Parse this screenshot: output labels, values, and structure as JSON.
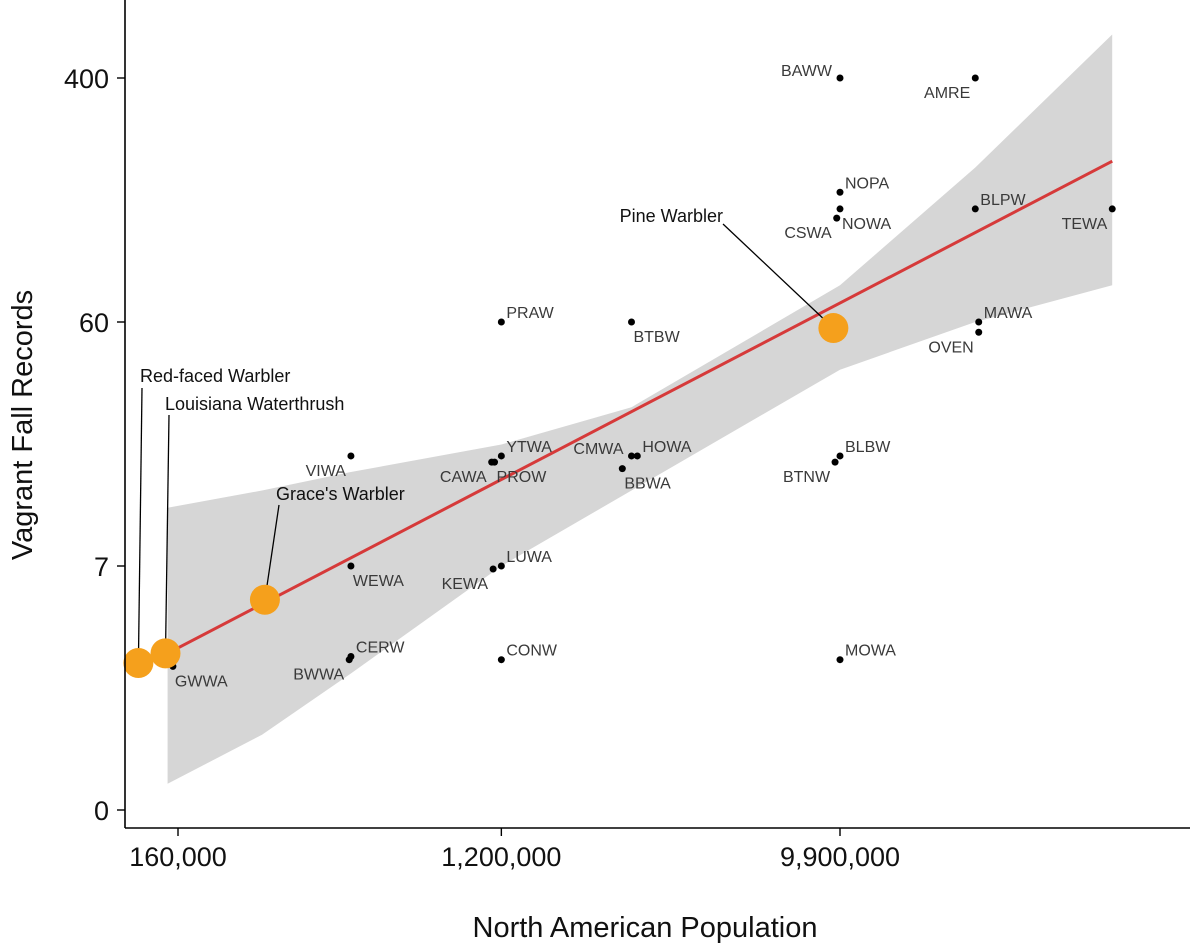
{
  "chart_data": {
    "type": "scatter",
    "xlabel": "North American Population",
    "ylabel": "Vagrant Fall Records",
    "x_scale": "log",
    "y_scale": "pseudo-log",
    "x_ticks": [
      {
        "value": 160000,
        "label": "160,000"
      },
      {
        "value": 1200000,
        "label": "1,200,000"
      },
      {
        "value": 9900000,
        "label": "9,900,000"
      }
    ],
    "y_ticks": [
      {
        "value": 0,
        "label": "0"
      },
      {
        "value": 7,
        "label": "7"
      },
      {
        "value": 60,
        "label": "60"
      },
      {
        "value": 400,
        "label": "400"
      }
    ],
    "species": [
      {
        "code": "BAWW",
        "x": 9900000,
        "y": 400,
        "label_side": "left"
      },
      {
        "code": "AMRE",
        "x": 23000000,
        "y": 400,
        "label_side": "below-left"
      },
      {
        "code": "NOPA",
        "x": 9900000,
        "y": 165,
        "label_side": "right"
      },
      {
        "code": "NOWA",
        "x": 9900000,
        "y": 145,
        "label_side": "below-right"
      },
      {
        "code": "CSWA",
        "x": 9700000,
        "y": 135,
        "label_side": "below-left"
      },
      {
        "code": "BLPW",
        "x": 23000000,
        "y": 145,
        "label_side": "right"
      },
      {
        "code": "TEWA",
        "x": 54000000,
        "y": 145,
        "label_side": "below-left"
      },
      {
        "code": "PRAW",
        "x": 1200000,
        "y": 60,
        "label_side": "right"
      },
      {
        "code": "BTBW",
        "x": 2700000,
        "y": 60,
        "label_side": "below-right"
      },
      {
        "code": "MAWA",
        "x": 23500000,
        "y": 60,
        "label_side": "right"
      },
      {
        "code": "OVEN",
        "x": 23500000,
        "y": 55,
        "label_side": "below-left"
      },
      {
        "code": "VIWA",
        "x": 470000,
        "y": 19,
        "label_side": "below-left"
      },
      {
        "code": "YTWA",
        "x": 1200000,
        "y": 19,
        "label_side": "right"
      },
      {
        "code": "PROW",
        "x": 1150000,
        "y": 18,
        "label_side": "below-right"
      },
      {
        "code": "CAWA",
        "x": 1130000,
        "y": 18,
        "label_side": "below-left"
      },
      {
        "code": "CMWA",
        "x": 2700000,
        "y": 19,
        "label_side": "left"
      },
      {
        "code": "HOWA",
        "x": 2800000,
        "y": 19,
        "label_side": "right"
      },
      {
        "code": "BBWA",
        "x": 2550000,
        "y": 17,
        "label_side": "below-right"
      },
      {
        "code": "BLBW",
        "x": 9900000,
        "y": 19,
        "label_side": "right"
      },
      {
        "code": "BTNW",
        "x": 9600000,
        "y": 18,
        "label_side": "below-left"
      },
      {
        "code": "WEWA",
        "x": 470000,
        "y": 7,
        "label_side": "below-right"
      },
      {
        "code": "LUWA",
        "x": 1200000,
        "y": 7,
        "label_side": "right"
      },
      {
        "code": "KEWA",
        "x": 1140000,
        "y": 6.8,
        "label_side": "below-left"
      },
      {
        "code": "CERW",
        "x": 470000,
        "y": 2.7,
        "label_side": "right"
      },
      {
        "code": "BWWA",
        "x": 465000,
        "y": 2.6,
        "label_side": "below-left"
      },
      {
        "code": "CONW",
        "x": 1200000,
        "y": 2.6,
        "label_side": "right"
      },
      {
        "code": "MOWA",
        "x": 9900000,
        "y": 2.6,
        "label_side": "right"
      },
      {
        "code": "GWWA",
        "x": 155000,
        "y": 2.4,
        "label_side": "below-right"
      }
    ],
    "highlighted": [
      {
        "name": "Pine Warbler",
        "x": 9500000,
        "y": 57
      },
      {
        "name": "Grace's Warbler",
        "x": 275000,
        "y": 5
      },
      {
        "name": "Louisiana Waterthrush",
        "x": 148000,
        "y": 2.8
      },
      {
        "name": "Red-faced Warbler",
        "x": 125000,
        "y": 2.5
      }
    ],
    "fit_line": {
      "x": [
        150000,
        54000000
      ],
      "y": [
        2.8,
        210
      ]
    },
    "confidence_band": {
      "x": [
        150000,
        270000,
        470000,
        1200000,
        2700000,
        9900000,
        23000000,
        54000000
      ],
      "upper": [
        12,
        14,
        16.5,
        21,
        29,
        80,
        200,
        560
      ],
      "lower": [
        0.25,
        0.9,
        2.2,
        7,
        14,
        40,
        60,
        80
      ]
    },
    "colors": {
      "fit_line": "#d63a3a",
      "band": "#d6d6d6",
      "highlight": "#f5a01c",
      "point": "#000000"
    }
  }
}
